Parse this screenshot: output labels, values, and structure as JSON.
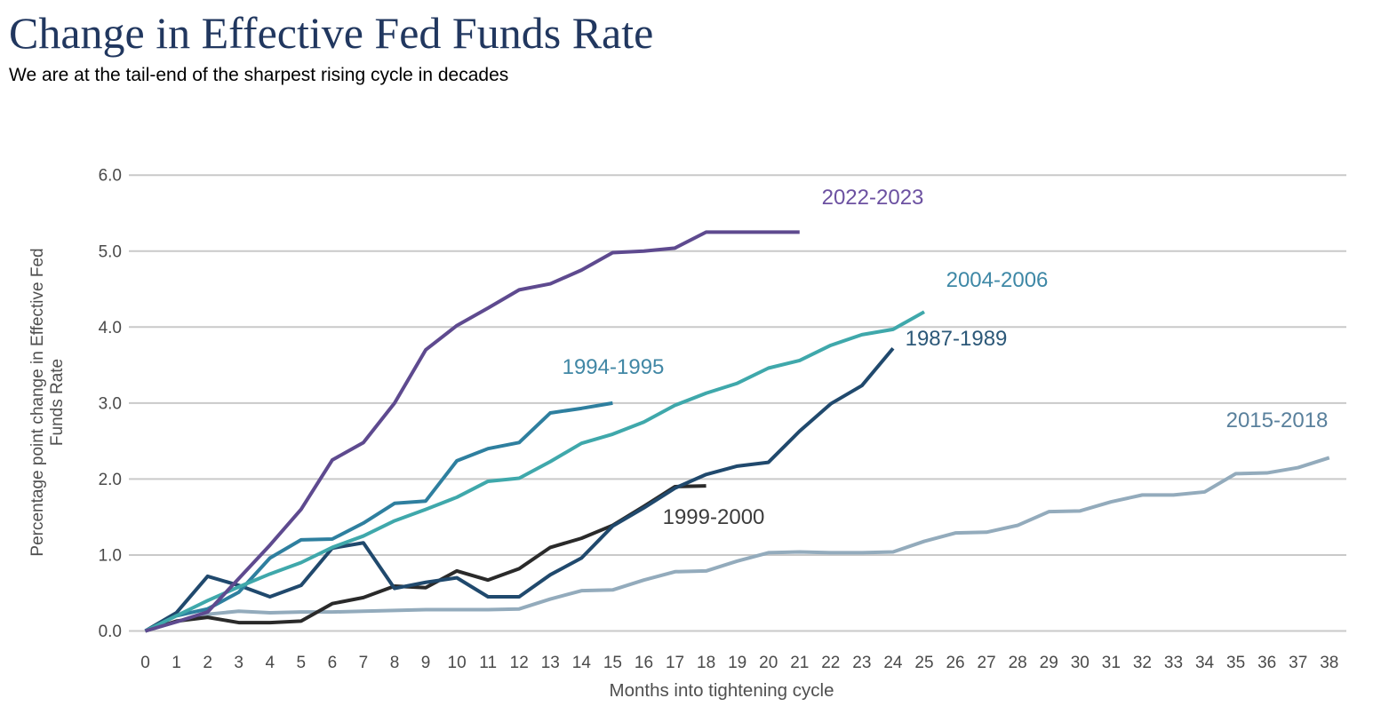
{
  "header": {
    "title": "Change in Effective Fed Funds Rate",
    "subtitle": "We are at the tail-end of the sharpest rising cycle in decades"
  },
  "colors": {
    "background": "#FFFFFF",
    "title_text": "#21375F",
    "subtitle_text": "#000000",
    "gridline": "#C9C9C9",
    "tick_text": "#4A4A4A",
    "axis_title_text": "#4F4F4F"
  },
  "chart_data": {
    "type": "line",
    "title": "Change in Effective Fed Funds Rate",
    "subtitle": "We are at the tail-end of the sharpest rising cycle in decades",
    "xlabel": "Months into tightening cycle",
    "ylabel_lines": [
      "Percentage point change in Effective Fed",
      "Funds Rate"
    ],
    "xlim": [
      0,
      38
    ],
    "ylim": [
      0.0,
      6.0
    ],
    "x_tick_labels": [
      "0",
      "1",
      "2",
      "3",
      "4",
      "5",
      "6",
      "7",
      "8",
      "9",
      "10",
      "11",
      "12",
      "13",
      "14",
      "15",
      "16",
      "17",
      "18",
      "19",
      "20",
      "21",
      "22",
      "23",
      "24",
      "25",
      "26",
      "27",
      "28",
      "29",
      "30",
      "31",
      "32",
      "33",
      "34",
      "35",
      "36",
      "37",
      "38"
    ],
    "y_tick_labels": [
      "0.0",
      "1.0",
      "2.0",
      "3.0",
      "4.0",
      "5.0",
      "6.0"
    ],
    "y_tick_values": [
      0,
      1,
      2,
      3,
      4,
      5,
      6
    ],
    "grid": "horizontal",
    "legend": "inline-labels-near-lines",
    "series": [
      {
        "name": "2022-2023",
        "line_color": "#5E4A8F",
        "label_color": "#6C51A1",
        "x_start": 0,
        "values": [
          0,
          0.12,
          0.25,
          0.69,
          1.13,
          1.6,
          2.25,
          2.48,
          3.0,
          3.7,
          4.02,
          4.25,
          4.49,
          4.57,
          4.75,
          4.98,
          5.0,
          5.04,
          5.25,
          5.25,
          5.25,
          5.25
        ]
      },
      {
        "name": "2004-2006",
        "line_color": "#3FA8AB",
        "label_color": "#3E88A6",
        "x_start": 0,
        "values": [
          0,
          0.2,
          0.4,
          0.58,
          0.75,
          0.9,
          1.1,
          1.25,
          1.45,
          1.6,
          1.76,
          1.97,
          2.01,
          2.23,
          2.47,
          2.59,
          2.75,
          2.97,
          3.13,
          3.26,
          3.46,
          3.56,
          3.76,
          3.9,
          3.97,
          4.2
        ]
      },
      {
        "name": "1987-1989",
        "line_color": "#20496D",
        "label_color": "#2C5878",
        "x_start": 0,
        "values": [
          0,
          0.24,
          0.72,
          0.6,
          0.45,
          0.6,
          1.09,
          1.16,
          0.56,
          0.64,
          0.7,
          0.45,
          0.45,
          0.74,
          0.96,
          1.38,
          1.62,
          1.88,
          2.06,
          2.17,
          2.22,
          2.63,
          2.99,
          3.23,
          3.72
        ]
      },
      {
        "name": "1994-1995",
        "line_color": "#2E7F9F",
        "label_color": "#4187A5",
        "x_start": 0,
        "values": [
          0,
          0.2,
          0.29,
          0.51,
          0.96,
          1.2,
          1.21,
          1.42,
          1.68,
          1.71,
          2.24,
          2.4,
          2.48,
          2.87,
          2.93,
          3.0
        ]
      },
      {
        "name": "1999-2000",
        "line_color": "#2A2A2A",
        "label_color": "#3C3C3C",
        "x_start": 0,
        "values": [
          0,
          0.13,
          0.18,
          0.11,
          0.11,
          0.13,
          0.36,
          0.44,
          0.59,
          0.57,
          0.79,
          0.67,
          0.82,
          1.1,
          1.22,
          1.39,
          1.64,
          1.9,
          1.91
        ]
      },
      {
        "name": "2015-2018",
        "line_color": "#93ABBC",
        "label_color": "#59809C",
        "x_start": 0,
        "values": [
          0,
          0.12,
          0.22,
          0.26,
          0.24,
          0.25,
          0.25,
          0.26,
          0.27,
          0.28,
          0.28,
          0.28,
          0.29,
          0.42,
          0.53,
          0.54,
          0.67,
          0.78,
          0.79,
          0.92,
          1.03,
          1.04,
          1.03,
          1.03,
          1.04,
          1.18,
          1.29,
          1.3,
          1.39,
          1.57,
          1.58,
          1.7,
          1.79,
          1.79,
          1.83,
          2.07,
          2.08,
          2.15,
          2.28
        ]
      }
    ]
  }
}
